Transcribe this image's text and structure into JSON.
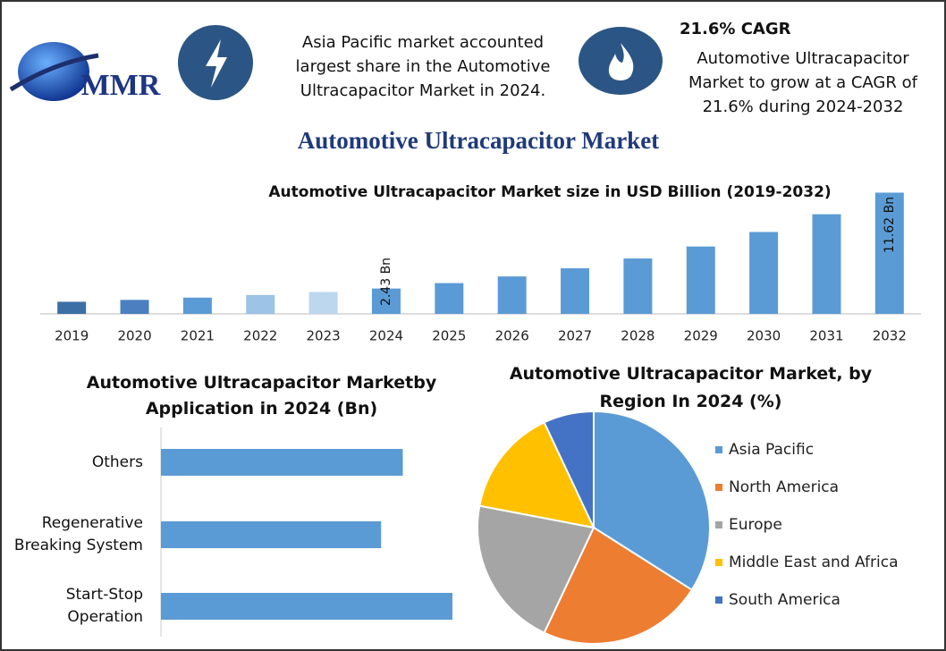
{
  "header": {
    "logo_text": "MMR",
    "share_note": "Asia Pacific market accounted largest share in the Automotive Ultracapacitor Market in 2024.",
    "cagr_title": "21.6% CAGR",
    "cagr_note": "Automotive Ultracapacitor Market to grow at a CAGR of 21.6% during 2024-2032",
    "title": "Automotive Ultracapacitor Market"
  },
  "chart_data": [
    {
      "type": "bar",
      "title": "Automotive Ultracapacitor Market size in USD Billion (2019-2032)",
      "categories": [
        "2019",
        "2020",
        "2021",
        "2022",
        "2023",
        "2024",
        "2025",
        "2026",
        "2027",
        "2028",
        "2029",
        "2030",
        "2031",
        "2032"
      ],
      "values": [
        1.16,
        1.34,
        1.56,
        1.81,
        2.1,
        2.43,
        2.95,
        3.59,
        4.37,
        5.31,
        6.46,
        7.85,
        9.55,
        11.62
      ],
      "value_labels": [
        null,
        null,
        null,
        null,
        null,
        "2.43 Bn",
        null,
        null,
        null,
        null,
        null,
        null,
        null,
        "11.62 Bn"
      ],
      "colors": [
        "#3b6fa6",
        "#4a80c0",
        "#5b9bd5",
        "#9dc3e6",
        "#bdd7ee",
        "#5b9bd5",
        "#5b9bd5",
        "#5b9bd5",
        "#5b9bd5",
        "#5b9bd5",
        "#5b9bd5",
        "#5b9bd5",
        "#5b9bd5",
        "#5b9bd5"
      ],
      "ylim": [
        0,
        12
      ]
    },
    {
      "type": "hbar",
      "title": "Automotive Ultracapacitor Marketby Application in 2024 (Bn)",
      "categories": [
        "Others",
        "Regenerative Breaking System",
        "Start-Stop Operation"
      ],
      "values": [
        0.78,
        0.71,
        0.94
      ],
      "color": "#5b9bd5"
    },
    {
      "type": "pie",
      "title": "Automotive Ultracapacitor Market, by Region In 2024 (%)",
      "categories": [
        "Asia Pacific",
        "North America",
        "Europe",
        "Middle East and Africa",
        "South America"
      ],
      "values": [
        34,
        23,
        21,
        15,
        7
      ],
      "colors": [
        "#5b9bd5",
        "#ed7d31",
        "#a5a5a5",
        "#ffc000",
        "#4472c4"
      ]
    }
  ]
}
